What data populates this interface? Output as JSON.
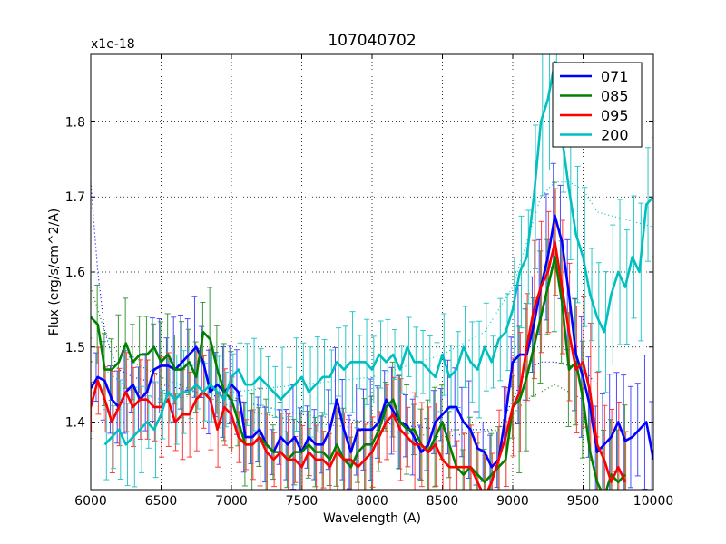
{
  "chart_data": {
    "type": "line",
    "title": "107040702",
    "xlabel": "Wavelength (A)",
    "ylabel": "Flux (erg/s/cm^2/A)",
    "offset_label": "x1e-18",
    "xlim": [
      6000,
      10000
    ],
    "ylim": [
      1.31,
      1.89
    ],
    "grid": true,
    "legend_position": "top-right",
    "x_ticks": [
      6000,
      6500,
      7000,
      7500,
      8000,
      8500,
      9000,
      9500,
      10000
    ],
    "y_ticks": [
      1.4,
      1.5,
      1.6,
      1.7,
      1.8
    ],
    "x_tick_labels": [
      "6000",
      "6500",
      "7000",
      "7500",
      "8000",
      "8500",
      "9000",
      "9500",
      "10000"
    ],
    "y_tick_labels": [
      "1.4",
      "1.5",
      "1.6",
      "1.7",
      "1.8"
    ],
    "series": [
      {
        "name": "071",
        "color": "#0000ff",
        "x": [
          6000,
          6050,
          6100,
          6150,
          6200,
          6250,
          6300,
          6350,
          6400,
          6450,
          6500,
          6550,
          6600,
          6650,
          6700,
          6750,
          6800,
          6850,
          6900,
          6950,
          7000,
          7050,
          7100,
          7150,
          7200,
          7250,
          7300,
          7350,
          7400,
          7450,
          7500,
          7550,
          7600,
          7650,
          7700,
          7750,
          7800,
          7850,
          7900,
          7950,
          8000,
          8050,
          8100,
          8150,
          8200,
          8250,
          8300,
          8350,
          8400,
          8450,
          8500,
          8550,
          8600,
          8650,
          8700,
          8750,
          8800,
          8850,
          8900,
          8950,
          9000,
          9050,
          9100,
          9150,
          9200,
          9250,
          9300,
          9350,
          9400,
          9450,
          9500,
          9550,
          9600,
          9650,
          9700,
          9750,
          9800,
          9850,
          9900,
          9950,
          10000
        ],
        "y": [
          1.445,
          1.46,
          1.455,
          1.43,
          1.42,
          1.44,
          1.45,
          1.43,
          1.44,
          1.47,
          1.475,
          1.475,
          1.47,
          1.48,
          1.49,
          1.5,
          1.48,
          1.44,
          1.45,
          1.44,
          1.45,
          1.44,
          1.38,
          1.38,
          1.39,
          1.37,
          1.36,
          1.38,
          1.37,
          1.38,
          1.36,
          1.38,
          1.37,
          1.37,
          1.39,
          1.43,
          1.39,
          1.36,
          1.39,
          1.39,
          1.39,
          1.4,
          1.43,
          1.415,
          1.4,
          1.395,
          1.38,
          1.36,
          1.37,
          1.4,
          1.41,
          1.42,
          1.42,
          1.4,
          1.39,
          1.365,
          1.36,
          1.34,
          1.35,
          1.41,
          1.48,
          1.49,
          1.49,
          1.53,
          1.58,
          1.62,
          1.675,
          1.64,
          1.57,
          1.49,
          1.46,
          1.42,
          1.36,
          1.37,
          1.38,
          1.4,
          1.375,
          1.38,
          1.39,
          1.4,
          1.35
        ]
      },
      {
        "name": "085",
        "color": "#008000",
        "x": [
          6000,
          6050,
          6100,
          6150,
          6200,
          6250,
          6300,
          6350,
          6400,
          6450,
          6500,
          6550,
          6600,
          6650,
          6700,
          6750,
          6800,
          6850,
          6900,
          6950,
          7000,
          7050,
          7100,
          7150,
          7200,
          7250,
          7300,
          7350,
          7400,
          7450,
          7500,
          7550,
          7600,
          7650,
          7700,
          7750,
          7800,
          7850,
          7900,
          7950,
          8000,
          8050,
          8100,
          8150,
          8200,
          8250,
          8300,
          8350,
          8400,
          8450,
          8500,
          8550,
          8600,
          8650,
          8700,
          8750,
          8800,
          8850,
          8900,
          8950,
          9000,
          9050,
          9100,
          9150,
          9200,
          9250,
          9300,
          9350,
          9400,
          9450,
          9500,
          9550,
          9600,
          9650,
          9700,
          9750,
          9800
        ],
        "y": [
          1.54,
          1.53,
          1.47,
          1.47,
          1.48,
          1.505,
          1.48,
          1.49,
          1.49,
          1.5,
          1.48,
          1.49,
          1.47,
          1.47,
          1.48,
          1.46,
          1.52,
          1.51,
          1.47,
          1.44,
          1.43,
          1.4,
          1.37,
          1.37,
          1.38,
          1.37,
          1.36,
          1.36,
          1.35,
          1.36,
          1.36,
          1.37,
          1.36,
          1.36,
          1.35,
          1.37,
          1.35,
          1.34,
          1.36,
          1.37,
          1.37,
          1.39,
          1.42,
          1.43,
          1.4,
          1.39,
          1.39,
          1.37,
          1.36,
          1.38,
          1.4,
          1.37,
          1.34,
          1.33,
          1.34,
          1.33,
          1.32,
          1.33,
          1.34,
          1.35,
          1.42,
          1.43,
          1.46,
          1.5,
          1.54,
          1.58,
          1.62,
          1.56,
          1.47,
          1.48,
          1.43,
          1.36,
          1.32,
          1.3,
          1.33,
          1.32,
          1.33
        ]
      },
      {
        "name": "095",
        "color": "#ff0000",
        "x": [
          6000,
          6050,
          6100,
          6150,
          6200,
          6250,
          6300,
          6350,
          6400,
          6450,
          6500,
          6550,
          6600,
          6650,
          6700,
          6750,
          6800,
          6850,
          6900,
          6950,
          7000,
          7050,
          7100,
          7150,
          7200,
          7250,
          7300,
          7350,
          7400,
          7450,
          7500,
          7550,
          7600,
          7650,
          7700,
          7750,
          7800,
          7850,
          7900,
          7950,
          8000,
          8050,
          8100,
          8150,
          8200,
          8250,
          8300,
          8350,
          8400,
          8450,
          8500,
          8550,
          8600,
          8650,
          8700,
          8750,
          8800,
          8850,
          8900,
          8950,
          9000,
          9050,
          9100,
          9150,
          9200,
          9250,
          9300,
          9350,
          9400,
          9450,
          9500,
          9550,
          9600,
          9650,
          9700,
          9750,
          9800
        ],
        "y": [
          1.42,
          1.455,
          1.43,
          1.4,
          1.42,
          1.44,
          1.42,
          1.43,
          1.43,
          1.42,
          1.42,
          1.43,
          1.4,
          1.41,
          1.41,
          1.43,
          1.44,
          1.43,
          1.39,
          1.42,
          1.41,
          1.38,
          1.37,
          1.37,
          1.38,
          1.36,
          1.35,
          1.36,
          1.35,
          1.35,
          1.34,
          1.36,
          1.35,
          1.35,
          1.34,
          1.36,
          1.35,
          1.35,
          1.34,
          1.35,
          1.36,
          1.38,
          1.4,
          1.41,
          1.39,
          1.38,
          1.37,
          1.37,
          1.36,
          1.37,
          1.35,
          1.34,
          1.34,
          1.34,
          1.34,
          1.32,
          1.3,
          1.32,
          1.35,
          1.38,
          1.42,
          1.44,
          1.5,
          1.55,
          1.58,
          1.6,
          1.64,
          1.58,
          1.52,
          1.47,
          1.48,
          1.44,
          1.37,
          1.35,
          1.32,
          1.34,
          1.32
        ]
      },
      {
        "name": "200",
        "color": "#00bfbf",
        "x": [
          6100,
          6150,
          6200,
          6250,
          6300,
          6350,
          6400,
          6450,
          6500,
          6550,
          6600,
          6650,
          6700,
          6750,
          6800,
          6850,
          6900,
          6950,
          7000,
          7050,
          7100,
          7150,
          7200,
          7250,
          7300,
          7350,
          7400,
          7450,
          7500,
          7550,
          7600,
          7650,
          7700,
          7750,
          7800,
          7850,
          7900,
          7950,
          8000,
          8050,
          8100,
          8150,
          8200,
          8250,
          8300,
          8350,
          8400,
          8450,
          8500,
          8550,
          8600,
          8650,
          8700,
          8750,
          8800,
          8850,
          8900,
          8950,
          9000,
          9050,
          9100,
          9150,
          9200,
          9250,
          9300,
          9350,
          9400,
          9450,
          9500,
          9550,
          9600,
          9650,
          9700,
          9750,
          9800,
          9850,
          9900,
          9950,
          10000
        ],
        "y": [
          1.37,
          1.38,
          1.39,
          1.37,
          1.38,
          1.39,
          1.4,
          1.39,
          1.41,
          1.44,
          1.43,
          1.44,
          1.44,
          1.45,
          1.44,
          1.45,
          1.44,
          1.43,
          1.46,
          1.47,
          1.45,
          1.45,
          1.46,
          1.45,
          1.44,
          1.43,
          1.44,
          1.45,
          1.46,
          1.44,
          1.45,
          1.46,
          1.46,
          1.48,
          1.47,
          1.48,
          1.48,
          1.48,
          1.47,
          1.49,
          1.48,
          1.49,
          1.47,
          1.5,
          1.48,
          1.48,
          1.47,
          1.46,
          1.49,
          1.46,
          1.47,
          1.5,
          1.48,
          1.47,
          1.5,
          1.48,
          1.51,
          1.52,
          1.55,
          1.6,
          1.62,
          1.7,
          1.8,
          1.83,
          1.88,
          1.78,
          1.71,
          1.65,
          1.62,
          1.57,
          1.54,
          1.52,
          1.57,
          1.6,
          1.58,
          1.62,
          1.6,
          1.69,
          1.7
        ]
      }
    ],
    "dotted_model_curves": [
      {
        "color": "#0000ff",
        "x": [
          6000,
          6050,
          6100,
          6150,
          6200,
          6300,
          6500,
          7000,
          7500,
          8000,
          8500,
          8900,
          9000,
          9100,
          9200,
          9300,
          9400,
          9500,
          9600
        ],
        "y": [
          1.72,
          1.6,
          1.52,
          1.49,
          1.47,
          1.46,
          1.45,
          1.43,
          1.41,
          1.4,
          1.39,
          1.39,
          1.43,
          1.47,
          1.48,
          1.48,
          1.475,
          1.47,
          1.45
        ]
      },
      {
        "color": "#008000",
        "x": [
          6000,
          6100,
          6200,
          6500,
          7000,
          7500,
          8000,
          8500,
          8900,
          9000,
          9100,
          9200,
          9300,
          9400,
          9500
        ],
        "y": [
          1.58,
          1.52,
          1.49,
          1.46,
          1.42,
          1.4,
          1.39,
          1.38,
          1.39,
          1.41,
          1.43,
          1.44,
          1.45,
          1.44,
          1.43
        ]
      },
      {
        "color": "#00bfbf",
        "x": [
          6100,
          6300,
          6500,
          7000,
          7500,
          8000,
          8500,
          8800,
          9000,
          9100,
          9200,
          9300,
          9400,
          9500,
          9600,
          9800,
          10000
        ],
        "y": [
          1.47,
          1.44,
          1.43,
          1.44,
          1.45,
          1.46,
          1.49,
          1.52,
          1.58,
          1.64,
          1.7,
          1.72,
          1.72,
          1.71,
          1.68,
          1.67,
          1.66
        ]
      }
    ]
  }
}
